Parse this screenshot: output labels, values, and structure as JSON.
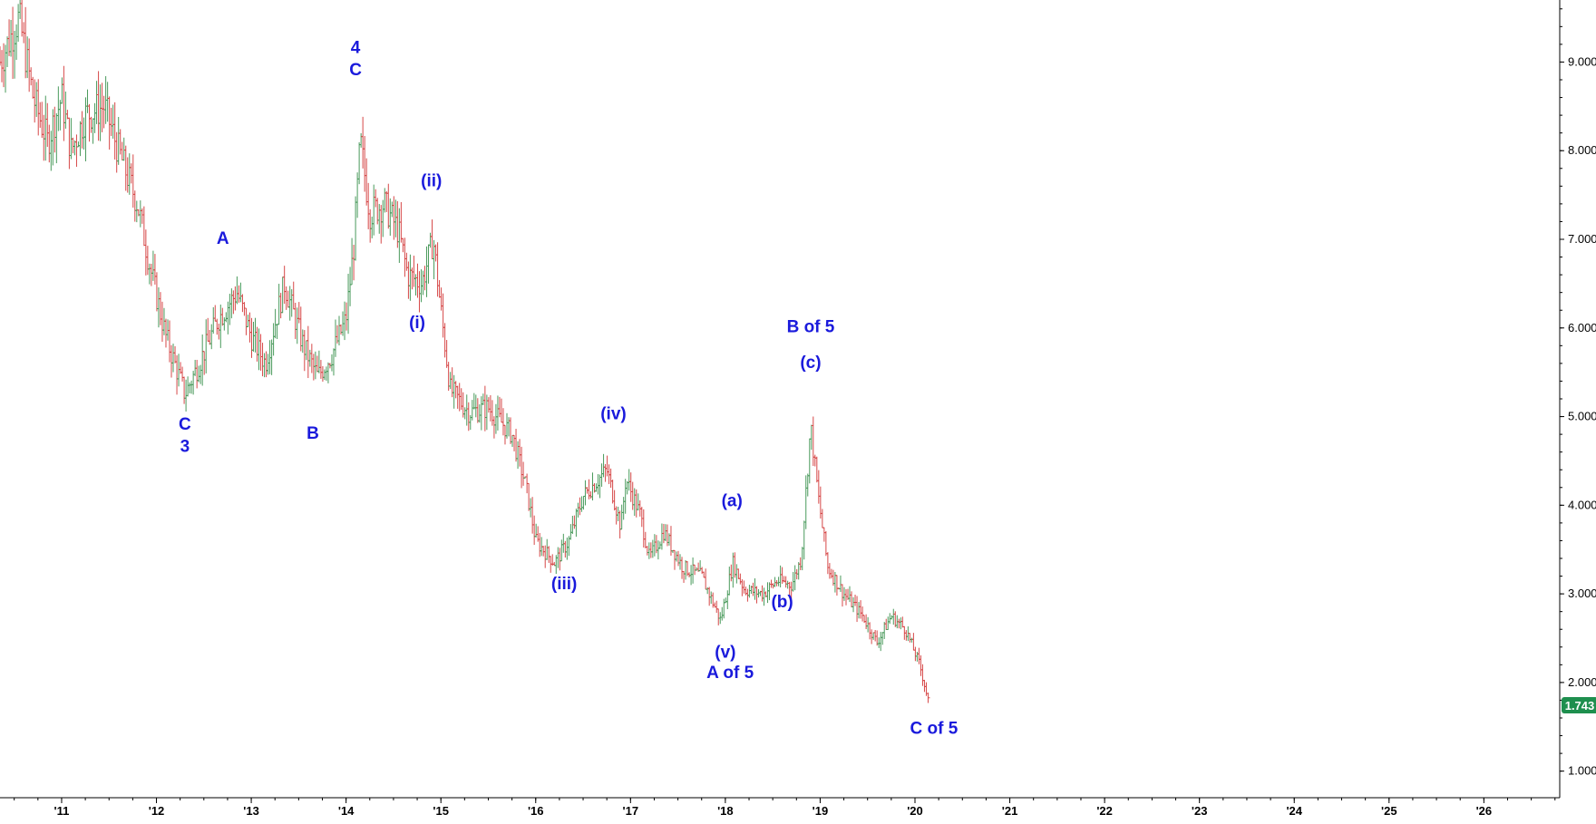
{
  "chart_data": {
    "type": "ohlc",
    "title": "",
    "xlabel": "",
    "ylabel": "",
    "ylim": [
      0.7,
      9.7
    ],
    "x_range": [
      2010.35,
      2026.8
    ],
    "y_ticks": [
      {
        "value": 1,
        "label": "1.000"
      },
      {
        "value": 2,
        "label": "2.000"
      },
      {
        "value": 3,
        "label": "3.000"
      },
      {
        "value": 4,
        "label": "4.000"
      },
      {
        "value": 5,
        "label": "5.000"
      },
      {
        "value": 6,
        "label": "6.000"
      },
      {
        "value": 7,
        "label": "7.000"
      },
      {
        "value": 8,
        "label": "8.000"
      },
      {
        "value": 9,
        "label": "9.000"
      }
    ],
    "x_ticks": [
      {
        "value": 2011,
        "label": "'11"
      },
      {
        "value": 2012,
        "label": "'12"
      },
      {
        "value": 2013,
        "label": "'13"
      },
      {
        "value": 2014,
        "label": "'14"
      },
      {
        "value": 2015,
        "label": "'15"
      },
      {
        "value": 2016,
        "label": "'16"
      },
      {
        "value": 2017,
        "label": "'17"
      },
      {
        "value": 2018,
        "label": "'18"
      },
      {
        "value": 2019,
        "label": "'19"
      },
      {
        "value": 2020,
        "label": "'20"
      },
      {
        "value": 2021,
        "label": "'21"
      },
      {
        "value": 2022,
        "label": "'22"
      },
      {
        "value": 2023,
        "label": "'23"
      },
      {
        "value": 2024,
        "label": "'24"
      },
      {
        "value": 2025,
        "label": "'25"
      },
      {
        "value": 2026,
        "label": "'26"
      }
    ],
    "last_price": {
      "value": 1.743,
      "label": "1.743"
    },
    "price_path": [
      [
        2010.35,
        9.0
      ],
      [
        2010.55,
        9.5
      ],
      [
        2010.7,
        8.6
      ],
      [
        2010.85,
        8.1
      ],
      [
        2011.0,
        8.6
      ],
      [
        2011.1,
        8.0
      ],
      [
        2011.25,
        8.4
      ],
      [
        2011.45,
        8.5
      ],
      [
        2011.6,
        8.0
      ],
      [
        2011.8,
        7.4
      ],
      [
        2011.95,
        6.6
      ],
      [
        2012.1,
        5.9
      ],
      [
        2012.3,
        5.25
      ],
      [
        2012.45,
        5.6
      ],
      [
        2012.65,
        6.1
      ],
      [
        2012.85,
        6.4
      ],
      [
        2013.0,
        5.9
      ],
      [
        2013.15,
        5.6
      ],
      [
        2013.35,
        6.5
      ],
      [
        2013.55,
        5.8
      ],
      [
        2013.7,
        5.45
      ],
      [
        2013.85,
        5.7
      ],
      [
        2014.0,
        6.1
      ],
      [
        2014.08,
        6.9
      ],
      [
        2014.15,
        8.1
      ],
      [
        2014.25,
        7.3
      ],
      [
        2014.4,
        7.4
      ],
      [
        2014.55,
        7.1
      ],
      [
        2014.65,
        6.6
      ],
      [
        2014.8,
        6.5
      ],
      [
        2014.92,
        7.0
      ],
      [
        2015.0,
        6.2
      ],
      [
        2015.1,
        5.3
      ],
      [
        2015.3,
        5.05
      ],
      [
        2015.5,
        5.1
      ],
      [
        2015.75,
        4.8
      ],
      [
        2015.9,
        4.2
      ],
      [
        2016.0,
        3.6
      ],
      [
        2016.2,
        3.35
      ],
      [
        2016.35,
        3.6
      ],
      [
        2016.5,
        4.1
      ],
      [
        2016.75,
        4.4
      ],
      [
        2016.9,
        3.75
      ],
      [
        2016.95,
        4.3
      ],
      [
        2017.1,
        3.9
      ],
      [
        2017.2,
        3.4
      ],
      [
        2017.35,
        3.7
      ],
      [
        2017.55,
        3.3
      ],
      [
        2017.75,
        3.2
      ],
      [
        2017.95,
        2.7
      ],
      [
        2018.08,
        3.35
      ],
      [
        2018.2,
        3.05
      ],
      [
        2018.4,
        3.0
      ],
      [
        2018.55,
        3.15
      ],
      [
        2018.7,
        3.1
      ],
      [
        2018.8,
        3.4
      ],
      [
        2018.9,
        4.9
      ],
      [
        2018.98,
        4.1
      ],
      [
        2019.08,
        3.3
      ],
      [
        2019.25,
        3.0
      ],
      [
        2019.45,
        2.75
      ],
      [
        2019.6,
        2.45
      ],
      [
        2019.75,
        2.75
      ],
      [
        2019.9,
        2.6
      ],
      [
        2020.05,
        2.2
      ],
      [
        2020.15,
        1.75
      ]
    ],
    "wave_labels": [
      {
        "text": "4",
        "x": 2014.1,
        "y": 9.1
      },
      {
        "text": "C",
        "x": 2014.1,
        "y": 8.85
      },
      {
        "text": "A",
        "x": 2012.7,
        "y": 6.95
      },
      {
        "text": "(ii)",
        "x": 2014.9,
        "y": 7.6
      },
      {
        "text": "(i)",
        "x": 2014.75,
        "y": 6.0
      },
      {
        "text": "C",
        "x": 2012.3,
        "y": 4.85
      },
      {
        "text": "3",
        "x": 2012.3,
        "y": 4.6
      },
      {
        "text": "B",
        "x": 2013.65,
        "y": 4.75
      },
      {
        "text": "B of 5",
        "x": 2018.9,
        "y": 5.95
      },
      {
        "text": "(c)",
        "x": 2018.9,
        "y": 5.55
      },
      {
        "text": "(iv)",
        "x": 2016.82,
        "y": 4.97
      },
      {
        "text": "(a)",
        "x": 2018.07,
        "y": 3.99
      },
      {
        "text": "(iii)",
        "x": 2016.3,
        "y": 3.05
      },
      {
        "text": "(b)",
        "x": 2018.6,
        "y": 2.85
      },
      {
        "text": "(v)",
        "x": 2018.0,
        "y": 2.28
      },
      {
        "text": "A of 5",
        "x": 2018.05,
        "y": 2.05
      },
      {
        "text": "C of 5",
        "x": 2020.2,
        "y": 1.42
      }
    ],
    "colors": {
      "up_bar": "#4a9a5c",
      "down_bar": "#d64848",
      "labels": "#1a1adc",
      "last_price_tag": "#1e8f4e",
      "axis": "#000000"
    },
    "grid": false,
    "axis_position": "right"
  }
}
